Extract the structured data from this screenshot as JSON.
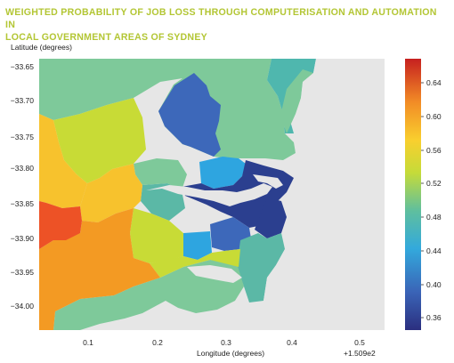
{
  "title_line1": "WEIGHTED PROBABILITY OF JOB LOSS THROUGH COMPUTERISATION AND AUTOMATION IN",
  "title_line2": "LOCAL GOVERNMENT AREAS OF SYDNEY",
  "ylabel": "Latitude (degrees)",
  "xlabel": "Longitude (degrees)",
  "x_offset": "+1.509e2",
  "y_ticks": [
    "−33.65",
    "−33.70",
    "−33.75",
    "−33.80",
    "−33.85",
    "−33.90",
    "−33.95",
    "−34.00"
  ],
  "x_ticks": [
    "0.1",
    "0.2",
    "0.3",
    "0.4",
    "0.5"
  ],
  "colorbar_ticks": [
    "0.64",
    "0.60",
    "0.56",
    "0.52",
    "0.48",
    "0.44",
    "0.40",
    "0.36"
  ],
  "colors": {
    "water": "#e6e6e6",
    "north_west": "#7ec99a",
    "hornsby": "#4fb7ae",
    "blue_north": "#3d68ba",
    "navy": "#2b3f8f",
    "sky": "#2ea5e0",
    "orange": "#f39a23",
    "red": "#ed5226",
    "yellow": "#f7c22d",
    "lime": "#c8db36",
    "teal": "#5bb8a6"
  }
}
